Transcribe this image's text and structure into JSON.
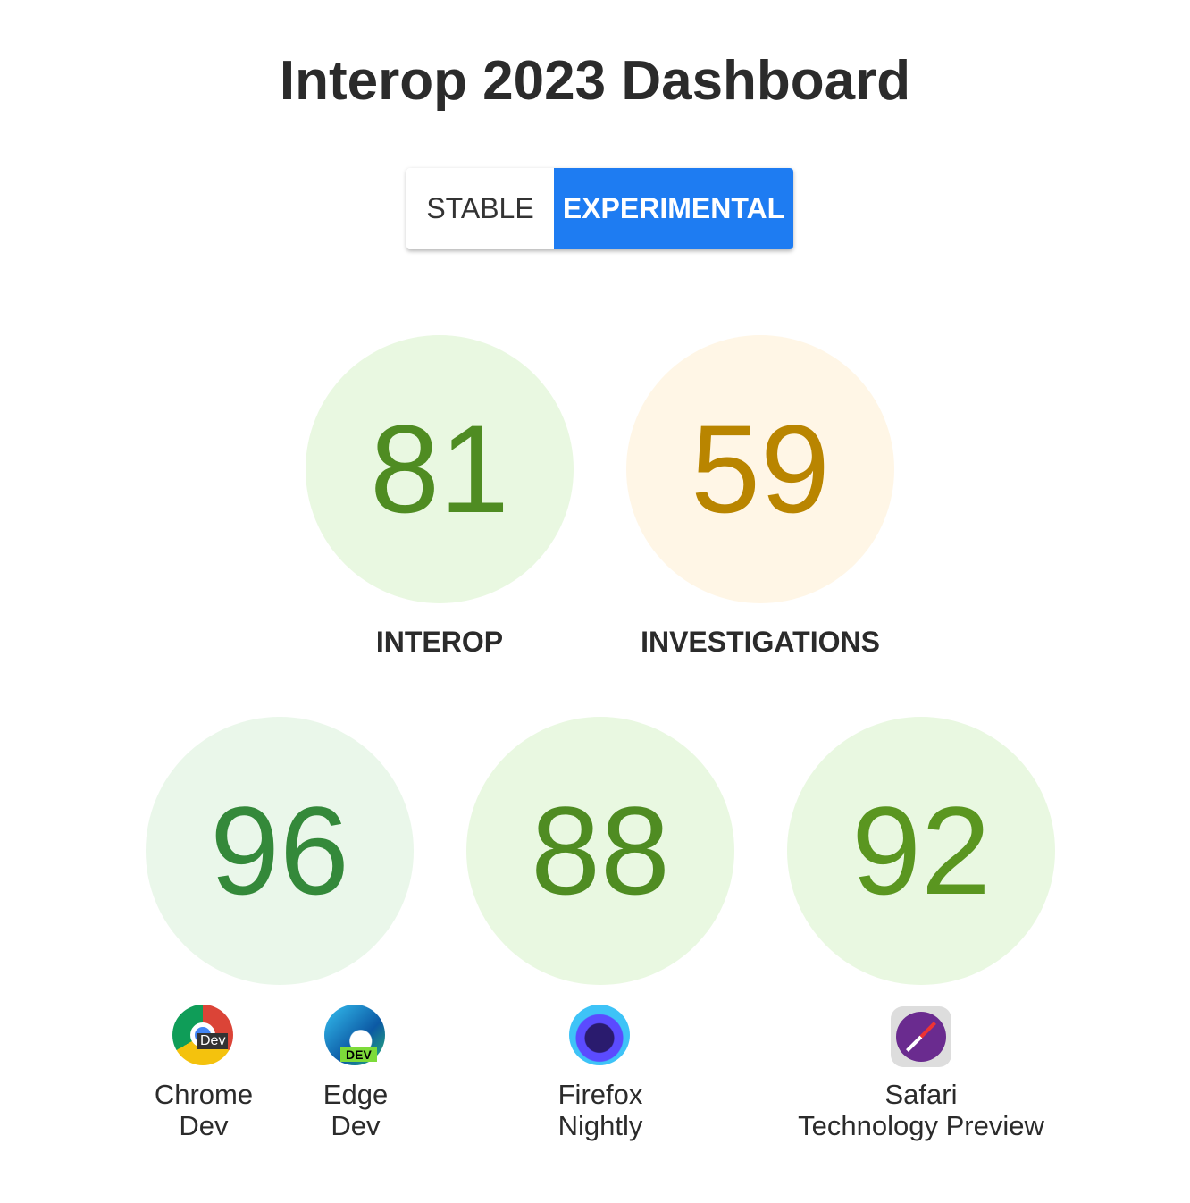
{
  "title": "Interop 2023 Dashboard",
  "toggle": {
    "stable": "STABLE",
    "experimental": "EXPERIMENTAL",
    "selected": "EXPERIMENTAL"
  },
  "summary": [
    {
      "label": "INTEROP",
      "score": "81",
      "color": "#4f8c22",
      "bg": "#e9f8e1"
    },
    {
      "label": "INVESTIGATIONS",
      "score": "59",
      "color": "#b98500",
      "bg": "#fff6e6"
    }
  ],
  "browsers": [
    {
      "score": "96",
      "names": [
        {
          "l1": "Chrome",
          "l2": "Dev",
          "icon": "chrome-dev-icon"
        },
        {
          "l1": "Edge",
          "l2": "Dev",
          "icon": "edge-dev-icon"
        }
      ],
      "color": "#34893a",
      "bg": "#eaf7ea"
    },
    {
      "score": "88",
      "names": [
        {
          "l1": "Firefox",
          "l2": "Nightly",
          "icon": "firefox-nightly-icon"
        }
      ],
      "color": "#4f8c22",
      "bg": "#e9f8e1"
    },
    {
      "score": "92",
      "names": [
        {
          "l1": "Safari",
          "l2": "Technology Preview",
          "icon": "safari-tp-icon"
        }
      ],
      "color": "#5a9620",
      "bg": "#e9f8e1"
    }
  ]
}
